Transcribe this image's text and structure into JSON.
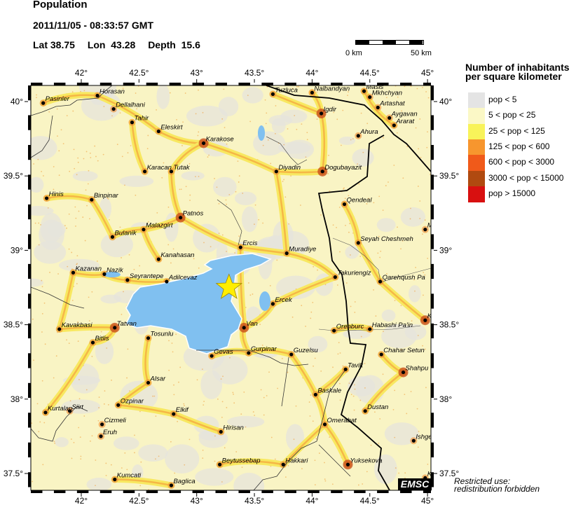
{
  "header": {
    "title": "Population",
    "datetime": "2011/11/05 - 08:33:57 GMT",
    "lat_label": "Lat 38.75",
    "lon_label": "Lon  43.28",
    "depth_label": "Depth  15.6"
  },
  "event": {
    "lat": 38.75,
    "lon": 43.28,
    "depth": 15.6,
    "marker": "star-icon",
    "color": "#ffee00"
  },
  "scale_bar": {
    "start_label": "0 km",
    "end_label": "50 km"
  },
  "map": {
    "lon_range": [
      41.56,
      45.03
    ],
    "lat_range": [
      37.39,
      40.11
    ],
    "lon_ticks": [
      "42°",
      "42.5°",
      "43°",
      "43.5°",
      "44°",
      "44.5°",
      "45°"
    ],
    "lon_tick_values": [
      42,
      42.5,
      43,
      43.5,
      44,
      44.5,
      45
    ],
    "lat_ticks": [
      "40°",
      "39.5°",
      "39°",
      "38.5°",
      "38°",
      "37.5°"
    ],
    "lat_tick_values": [
      40,
      39.5,
      39,
      38.5,
      38,
      37.5
    ],
    "water_color": "#80c0f0",
    "cities": [
      {
        "name": "Pasinler",
        "lon": 41.67,
        "lat": 39.99
      },
      {
        "name": "Horasan",
        "lon": 42.14,
        "lat": 40.04
      },
      {
        "name": "Dellalhani",
        "lon": 42.28,
        "lat": 39.95
      },
      {
        "name": "Tahir",
        "lon": 42.44,
        "lat": 39.86
      },
      {
        "name": "Eleskirt",
        "lon": 42.67,
        "lat": 39.8
      },
      {
        "name": "Karakose",
        "lon": 43.06,
        "lat": 39.72
      },
      {
        "name": "Karacan",
        "lon": 42.55,
        "lat": 39.53
      },
      {
        "name": "Tutak",
        "lon": 42.78,
        "lat": 39.53
      },
      {
        "name": "Hinis",
        "lon": 41.7,
        "lat": 39.35
      },
      {
        "name": "Binpinar",
        "lon": 42.09,
        "lat": 39.34
      },
      {
        "name": "Patnos",
        "lon": 42.86,
        "lat": 39.22
      },
      {
        "name": "Malazgirt",
        "lon": 42.54,
        "lat": 39.14
      },
      {
        "name": "Bulanik",
        "lon": 42.27,
        "lat": 39.09
      },
      {
        "name": "Kanahasan",
        "lon": 42.67,
        "lat": 38.94
      },
      {
        "name": "Kazanan",
        "lon": 41.93,
        "lat": 38.85
      },
      {
        "name": "Nazik",
        "lon": 42.2,
        "lat": 38.84
      },
      {
        "name": "Seyrantepe",
        "lon": 42.4,
        "lat": 38.8
      },
      {
        "name": "Adilcevaz",
        "lon": 42.74,
        "lat": 38.79
      },
      {
        "name": "Kavakbasi",
        "lon": 41.81,
        "lat": 38.47
      },
      {
        "name": "Tatvan",
        "lon": 42.29,
        "lat": 38.48
      },
      {
        "name": "Tosunlu",
        "lon": 42.58,
        "lat": 38.41
      },
      {
        "name": "Bitlis",
        "lon": 42.1,
        "lat": 38.38
      },
      {
        "name": "Gevas",
        "lon": 43.13,
        "lat": 38.29
      },
      {
        "name": "Tuzluca",
        "lon": 43.66,
        "lat": 40.05
      },
      {
        "name": "Nalbandyan",
        "lon": 44.0,
        "lat": 40.06
      },
      {
        "name": "Masis",
        "lon": 44.45,
        "lat": 40.07
      },
      {
        "name": "Mkhchyan",
        "lon": 44.5,
        "lat": 40.03
      },
      {
        "name": "Artashat",
        "lon": 44.57,
        "lat": 39.96
      },
      {
        "name": "Aygavan",
        "lon": 44.67,
        "lat": 39.89
      },
      {
        "name": "Ararat",
        "lon": 44.71,
        "lat": 39.84
      },
      {
        "name": "Igdir",
        "lon": 44.08,
        "lat": 39.92
      },
      {
        "name": "Ahura",
        "lon": 44.4,
        "lat": 39.77
      },
      {
        "name": "Diyadin",
        "lon": 43.69,
        "lat": 39.53
      },
      {
        "name": "Dogubayazit",
        "lon": 44.09,
        "lat": 39.53
      },
      {
        "name": "Qendeal",
        "lon": 44.28,
        "lat": 39.31
      },
      {
        "name": "Ercis",
        "lon": 43.38,
        "lat": 39.02
      },
      {
        "name": "Muradiye",
        "lon": 43.78,
        "lat": 38.98
      },
      {
        "name": "Seyah Cheshmeh",
        "lon": 44.4,
        "lat": 39.05
      },
      {
        "name": "M",
        "lon": 44.98,
        "lat": 39.14
      },
      {
        "name": "Takuriengiz",
        "lon": 44.2,
        "lat": 38.82
      },
      {
        "name": "Qarehqush Pa",
        "lon": 44.59,
        "lat": 38.79
      },
      {
        "name": "Ercek",
        "lon": 43.66,
        "lat": 38.64
      },
      {
        "name": "Van",
        "lon": 43.41,
        "lat": 38.48
      },
      {
        "name": "K",
        "lon": 44.98,
        "lat": 38.53
      },
      {
        "name": "Orenburc",
        "lon": 44.19,
        "lat": 38.46
      },
      {
        "name": "Habashi Pa'in",
        "lon": 44.5,
        "lat": 38.47
      },
      {
        "name": "Gurpinar",
        "lon": 43.45,
        "lat": 38.31
      },
      {
        "name": "Guzelsu",
        "lon": 43.82,
        "lat": 38.3
      },
      {
        "name": "Chahar Setun",
        "lon": 44.6,
        "lat": 38.3
      },
      {
        "name": "Shahpu",
        "lon": 44.79,
        "lat": 38.18
      },
      {
        "name": "Tavik",
        "lon": 44.29,
        "lat": 38.2
      },
      {
        "name": "Alsar",
        "lon": 42.58,
        "lat": 38.11
      },
      {
        "name": "Baskale",
        "lon": 44.03,
        "lat": 38.03
      },
      {
        "name": "Ozpinar",
        "lon": 42.32,
        "lat": 37.96
      },
      {
        "name": "Kurtalan",
        "lon": 41.69,
        "lat": 37.91
      },
      {
        "name": "Siirt",
        "lon": 41.9,
        "lat": 37.92
      },
      {
        "name": "Elkif",
        "lon": 42.8,
        "lat": 37.9
      },
      {
        "name": "Dustan",
        "lon": 44.46,
        "lat": 37.92
      },
      {
        "name": "Cizmeli",
        "lon": 42.18,
        "lat": 37.83
      },
      {
        "name": "Omerabat",
        "lon": 44.11,
        "lat": 37.83
      },
      {
        "name": "Eruh",
        "lon": 42.17,
        "lat": 37.75
      },
      {
        "name": "Hirisan",
        "lon": 43.21,
        "lat": 37.78
      },
      {
        "name": "Ishge",
        "lon": 44.88,
        "lat": 37.72
      },
      {
        "name": "Beytussebap",
        "lon": 43.2,
        "lat": 37.56
      },
      {
        "name": "Hakkari",
        "lon": 43.75,
        "lat": 37.56
      },
      {
        "name": "Yuksekova",
        "lon": 44.31,
        "lat": 37.56
      },
      {
        "name": "Kumcati",
        "lon": 42.29,
        "lat": 37.46
      },
      {
        "name": "Baglica",
        "lon": 42.78,
        "lat": 37.42
      },
      {
        "name": "Kh",
        "lon": 44.98,
        "lat": 37.47
      }
    ]
  },
  "legend": {
    "title_line1": "Number of inhabitants",
    "title_line2": "per square kilometer",
    "items": [
      {
        "label": "pop < 5",
        "color": "#e4e4e4"
      },
      {
        "label": "5 < pop < 25",
        "color": "#fbf8c6"
      },
      {
        "label": "25 < pop < 125",
        "color": "#f8f35a"
      },
      {
        "label": "125 < pop < 600",
        "color": "#f7962e"
      },
      {
        "label": "600 < pop < 3000",
        "color": "#f05a1a"
      },
      {
        "label": "3000 < pop < 15000",
        "color": "#b04a10"
      },
      {
        "label": "pop > 15000",
        "color": "#d81010"
      }
    ]
  },
  "footer": {
    "logo": "EMSC",
    "notice_line1": "Restricted use:",
    "notice_line2": "redistribution forbidden"
  }
}
